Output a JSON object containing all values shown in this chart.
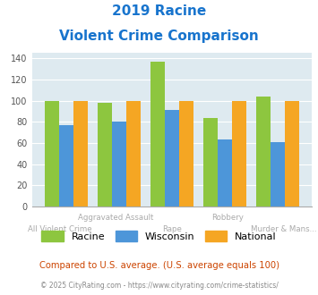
{
  "title_line1": "2019 Racine",
  "title_line2": "Violent Crime Comparison",
  "categories": [
    "All Violent Crime",
    "Aggravated Assault",
    "Rape",
    "Robbery",
    "Murder & Mans..."
  ],
  "racine": [
    100,
    98,
    137,
    84,
    104
  ],
  "wisconsin": [
    77,
    80,
    91,
    63,
    61
  ],
  "national": [
    100,
    100,
    100,
    100,
    100
  ],
  "color_racine": "#8dc63f",
  "color_wisconsin": "#4d96d9",
  "color_national": "#f5a623",
  "color_title": "#1874cd",
  "color_xlabel": "#aaaaaa",
  "color_bg_plot": "#deeaf0",
  "color_footer": "#888888",
  "color_note": "#cc4400",
  "ylim": [
    0,
    145
  ],
  "yticks": [
    0,
    20,
    40,
    60,
    80,
    100,
    120,
    140
  ],
  "footer_text": "© 2025 CityRating.com - https://www.cityrating.com/crime-statistics/",
  "note_text": "Compared to U.S. average. (U.S. average equals 100)",
  "legend_labels": [
    "Racine",
    "Wisconsin",
    "National"
  ]
}
